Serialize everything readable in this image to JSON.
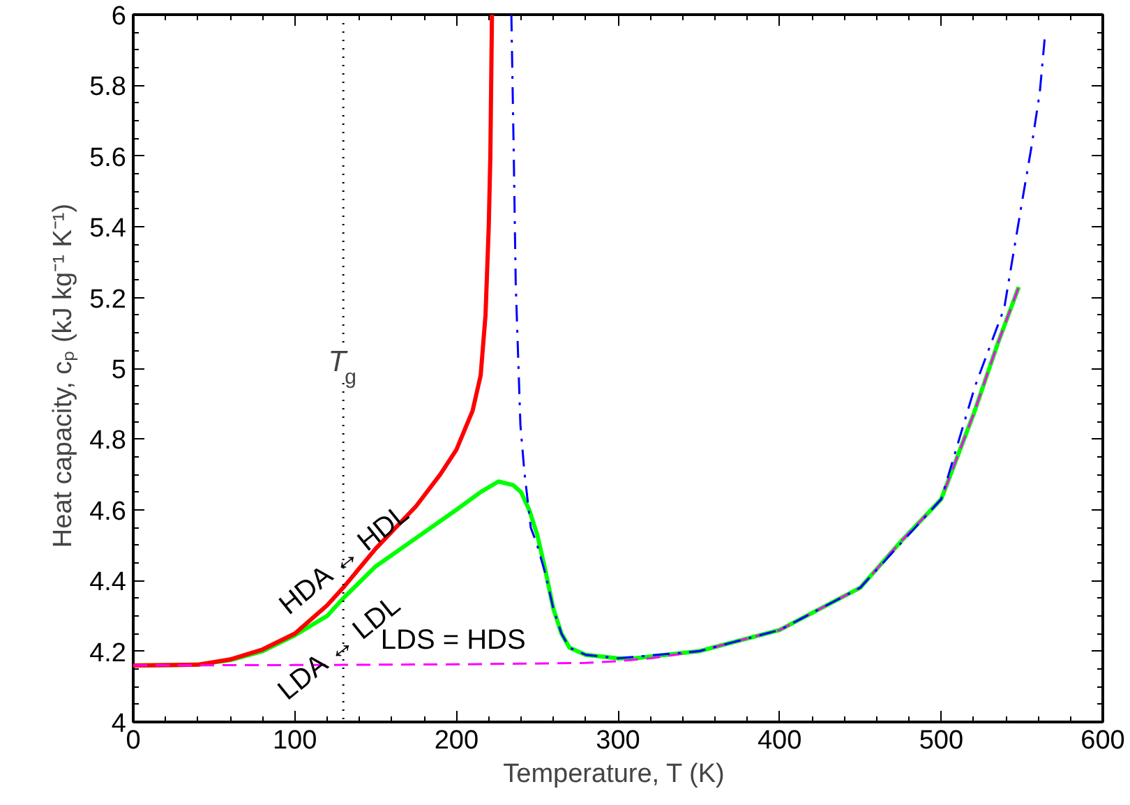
{
  "chart_data": {
    "type": "line",
    "xlabel": "Temperature,  T (K)",
    "ylabel": "Heat capacity,  cₚ  (kJ kg⁻¹ K⁻¹)",
    "xlim": [
      0,
      600
    ],
    "ylim": [
      4,
      6
    ],
    "xticks": [
      0,
      100,
      200,
      300,
      400,
      500,
      600
    ],
    "yticks": [
      4,
      4.2,
      4.4,
      4.6,
      4.8,
      5,
      5.2,
      5.4,
      5.6,
      5.8,
      6
    ],
    "grid": false,
    "series": [
      {
        "color": "#00ff00",
        "line_style": "solid",
        "x": [
          0,
          40,
          60,
          80,
          100,
          120,
          130,
          150,
          175,
          200,
          215,
          226,
          235,
          240,
          245,
          250,
          255,
          260,
          265,
          270,
          280,
          300,
          310,
          350,
          400,
          450,
          475,
          500,
          520,
          535,
          548
        ],
        "values": [
          4.16,
          4.162,
          4.175,
          4.2,
          4.245,
          4.3,
          4.35,
          4.44,
          4.52,
          4.6,
          4.65,
          4.68,
          4.67,
          4.65,
          4.6,
          4.53,
          4.43,
          4.32,
          4.25,
          4.21,
          4.19,
          4.18,
          4.18,
          4.2,
          4.26,
          4.38,
          4.51,
          4.63,
          4.87,
          5.07,
          5.23
        ]
      },
      {
        "color": "#ff0000",
        "line_style": "solid",
        "x": [
          0,
          40,
          60,
          80,
          100,
          120,
          130,
          150,
          175,
          190,
          200,
          210,
          215,
          218,
          220,
          221,
          222
        ],
        "values": [
          4.16,
          4.162,
          4.177,
          4.205,
          4.25,
          4.33,
          4.38,
          4.49,
          4.61,
          4.7,
          4.77,
          4.88,
          4.98,
          5.15,
          5.4,
          5.6,
          6.0
        ]
      },
      {
        "color": "#ff00ff",
        "line_style": "dashed",
        "x": [
          0,
          100,
          200,
          280,
          300,
          320,
          350,
          400,
          450,
          475,
          500,
          520,
          535,
          548
        ],
        "values": [
          4.16,
          4.161,
          4.163,
          4.167,
          4.172,
          4.18,
          4.2,
          4.26,
          4.38,
          4.51,
          4.63,
          4.87,
          5.07,
          5.23
        ]
      },
      {
        "color": "#0000ff",
        "line_style": "dashdot",
        "x": [
          234,
          235.5,
          236.7,
          239.6,
          242,
          246,
          250,
          255,
          260,
          265,
          270,
          280,
          300,
          350,
          400,
          450,
          500,
          521,
          539,
          550,
          556,
          561,
          564
        ],
        "values": [
          6.0,
          5.6,
          5.24,
          4.84,
          4.71,
          4.55,
          4.5,
          4.42,
          4.32,
          4.25,
          4.21,
          4.19,
          4.18,
          4.2,
          4.26,
          4.38,
          4.63,
          4.95,
          5.17,
          5.47,
          5.63,
          5.78,
          5.93
        ]
      }
    ],
    "ref_lines": [
      {
        "axis": "x",
        "value": 130,
        "label": "T$_{g}$",
        "color": "#000000",
        "line_style": "dotted"
      }
    ],
    "annotations": [
      {
        "text": "HDA ↔ HDL",
        "x": 131,
        "y": 4.46
      },
      {
        "text": "LDA ↔ LDL",
        "x": 128,
        "y": 4.21
      },
      "LDS = HDS"
    ]
  }
}
